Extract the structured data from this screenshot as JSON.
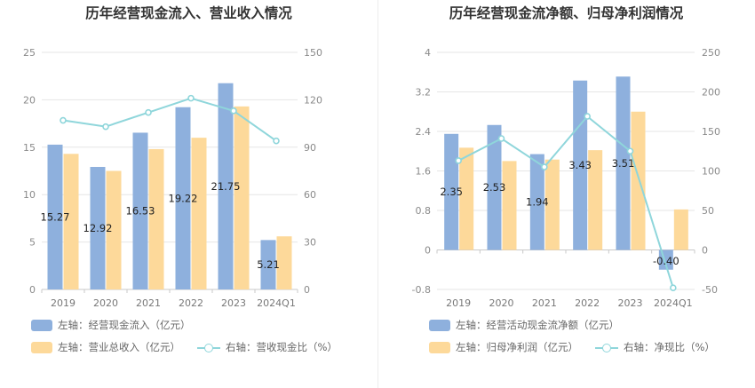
{
  "colors": {
    "bar_primary": "#8eb0dd",
    "bar_secondary": "#fdd99a",
    "line": "#8fd6db",
    "grid": "#e6e6e6"
  },
  "chart_data": [
    {
      "type": "bar",
      "title": "历年经营现金流入、营业收入情况",
      "categories": [
        "2019",
        "2020",
        "2021",
        "2022",
        "2023",
        "2024Q1"
      ],
      "left_axis": {
        "ylim": [
          0,
          25
        ],
        "ticks": [
          "0",
          "5",
          "10",
          "15",
          "20",
          "25"
        ]
      },
      "right_axis": {
        "ylim": [
          0,
          150
        ],
        "ticks": [
          "0",
          "30",
          "60",
          "90",
          "120",
          "150"
        ]
      },
      "series": [
        {
          "name": "左轴：经营现金流入（亿元）",
          "kind": "bar",
          "axis": "left",
          "values": [
            15.27,
            12.92,
            16.53,
            19.22,
            21.75,
            5.21
          ],
          "labels": [
            "15.27",
            "12.92",
            "16.53",
            "19.22",
            "21.75",
            "5.21"
          ]
        },
        {
          "name": "左轴：营业总收入（亿元）",
          "kind": "bar",
          "axis": "left",
          "values": [
            14.3,
            12.5,
            14.8,
            16.0,
            19.3,
            5.6
          ]
        },
        {
          "name": "右轴：营收现金比（%）",
          "kind": "line",
          "axis": "right",
          "values": [
            107,
            103,
            112,
            121,
            113,
            94
          ]
        }
      ],
      "grid": true,
      "legend_position": "bottom"
    },
    {
      "type": "bar",
      "title": "历年经营现金流净额、归母净利润情况",
      "categories": [
        "2019",
        "2020",
        "2021",
        "2022",
        "2023",
        "2024Q1"
      ],
      "left_axis": {
        "ylim": [
          -0.8,
          4
        ],
        "ticks": [
          "-0.8",
          "0",
          "0.8",
          "1.6",
          "2.4",
          "3.2",
          "4"
        ]
      },
      "right_axis": {
        "ylim": [
          -50,
          250
        ],
        "ticks": [
          "-50",
          "0",
          "50",
          "100",
          "150",
          "200",
          "250"
        ]
      },
      "series": [
        {
          "name": "左轴：经营活动现金流净额（亿元）",
          "kind": "bar",
          "axis": "left",
          "values": [
            2.35,
            2.53,
            1.94,
            3.43,
            3.51,
            -0.4
          ],
          "labels": [
            "2.35",
            "2.53",
            "1.94",
            "3.43",
            "3.51",
            "-0.40"
          ]
        },
        {
          "name": "左轴：归母净利润（亿元）",
          "kind": "bar",
          "axis": "left",
          "values": [
            2.07,
            1.8,
            1.83,
            2.02,
            2.8,
            0.82
          ]
        },
        {
          "name": "右轴：净现比（%）",
          "kind": "line",
          "axis": "right",
          "values": [
            113,
            141,
            105,
            169,
            125,
            -48
          ]
        }
      ],
      "grid": true,
      "legend_position": "bottom"
    }
  ]
}
